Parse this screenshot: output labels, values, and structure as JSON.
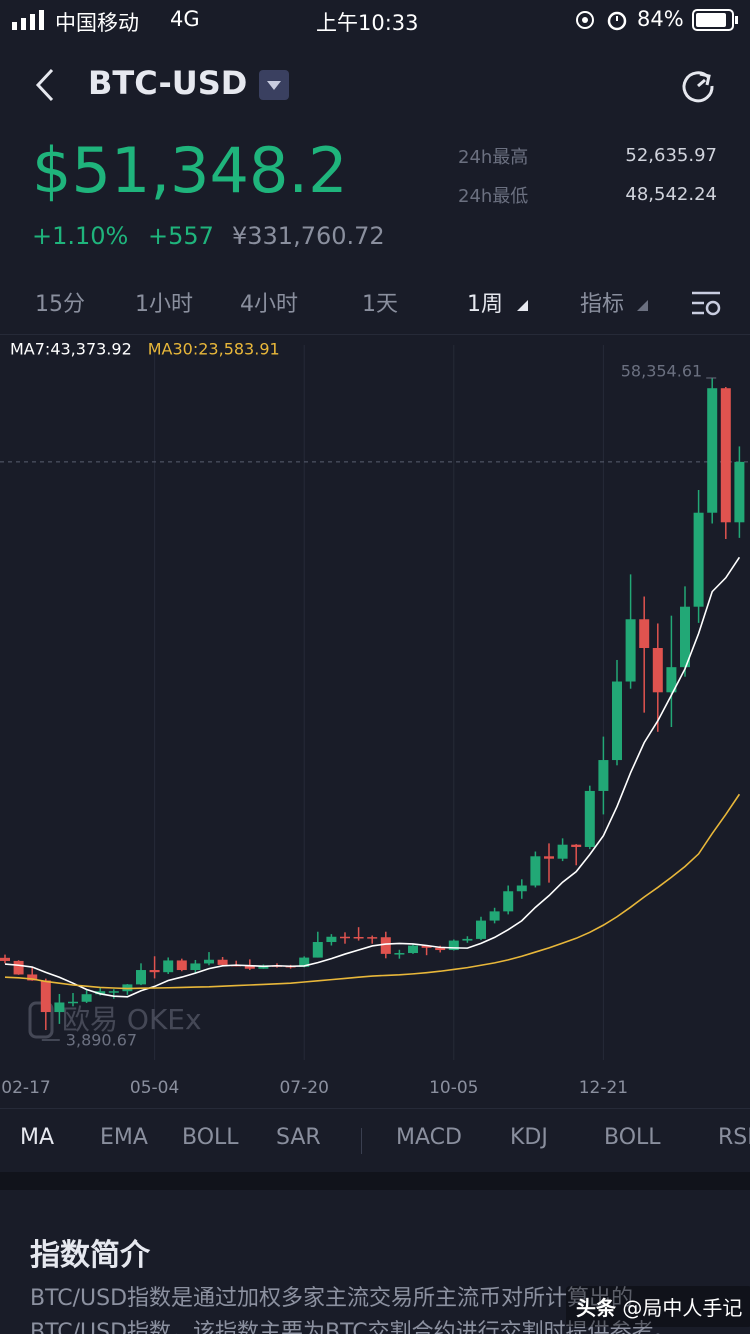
{
  "status_bar": {
    "carrier": "中国移动",
    "network": "4G",
    "time": "上午10:33",
    "battery": "84%"
  },
  "header": {
    "title": "BTC-USD"
  },
  "quote": {
    "price": "$51,348.2",
    "change_pct": "+1.10%",
    "change": "+557",
    "cny": "¥331,760.72",
    "high_label": "24h最高",
    "high": "52,635.97",
    "low_label": "24h最低",
    "low": "48,542.24"
  },
  "period_tabs": {
    "items": [
      "15分",
      "1小时",
      "4小时",
      "1天",
      "1周",
      "指标"
    ],
    "selected": "1周"
  },
  "chart_data": {
    "type": "candlestick",
    "categories": [
      "02-17",
      null,
      null,
      null,
      null,
      null,
      null,
      null,
      null,
      null,
      null,
      "05-04",
      null,
      null,
      null,
      null,
      null,
      null,
      null,
      null,
      null,
      null,
      "07-20",
      null,
      null,
      null,
      null,
      null,
      null,
      null,
      null,
      null,
      null,
      "10-05",
      null,
      null,
      null,
      null,
      null,
      null,
      null,
      null,
      null,
      null,
      "12-21",
      null,
      null,
      null,
      null,
      null,
      null,
      null,
      null,
      null,
      null
    ],
    "open": [
      9920,
      9660,
      8530,
      8030,
      5390,
      6190,
      6250,
      6880,
      7130,
      7130,
      7700,
      8900,
      8720,
      9700,
      8900,
      9450,
      9760,
      9330,
      9300,
      9010,
      9290,
      9240,
      9170,
      9940,
      11240,
      11680,
      11660,
      11650,
      11640,
      10250,
      10320,
      10940,
      10760,
      10570,
      11360,
      11500,
      13030,
      13800,
      15480,
      15960,
      18400,
      18200,
      19370,
      19180,
      23860,
      26440,
      33000,
      38200,
      35800,
      32100,
      34200,
      39250,
      47100,
      57500,
      46300
    ],
    "high": [
      10190,
      9720,
      9190,
      8180,
      6900,
      6980,
      7300,
      7470,
      7300,
      7730,
      9460,
      10050,
      9950,
      9850,
      9740,
      10400,
      9990,
      9680,
      9790,
      9360,
      9460,
      9330,
      10040,
      12100,
      11900,
      12050,
      12480,
      11780,
      12100,
      10590,
      11100,
      10990,
      10930,
      11450,
      11720,
      13350,
      14100,
      15960,
      16480,
      18800,
      19480,
      19900,
      19420,
      24300,
      28400,
      34800,
      41950,
      40100,
      37850,
      38500,
      40950,
      49000,
      58354.61,
      57600,
      52640
    ],
    "low": [
      9460,
      8500,
      8000,
      3890.67,
      4400,
      5870,
      6150,
      6780,
      6500,
      6830,
      7640,
      8200,
      8570,
      8800,
      8630,
      9300,
      9220,
      9200,
      8900,
      9000,
      9100,
      9020,
      9130,
      9940,
      10950,
      11100,
      11360,
      11100,
      9880,
      9850,
      10250,
      10140,
      10370,
      10530,
      11180,
      11400,
      12800,
      13550,
      14850,
      15800,
      16200,
      18000,
      17650,
      19000,
      21900,
      26000,
      32400,
      30400,
      28800,
      29200,
      33400,
      37900,
      46200,
      44900,
      45000
    ],
    "close": [
      9660,
      8530,
      8030,
      5390,
      6190,
      6250,
      6880,
      7130,
      7130,
      7700,
      8900,
      8720,
      9700,
      8900,
      9450,
      9760,
      9330,
      9300,
      9010,
      9290,
      9240,
      9170,
      9940,
      11240,
      11680,
      11660,
      11650,
      11640,
      10250,
      10320,
      10940,
      10760,
      10570,
      11360,
      11500,
      13030,
      13800,
      15480,
      15960,
      18400,
      18200,
      19370,
      19180,
      23860,
      26440,
      33000,
      38200,
      35800,
      32100,
      34200,
      39250,
      47100,
      57500,
      46300,
      51348.2
    ],
    "up_color": "#22a876",
    "down_color": "#e0534f",
    "lines": [
      {
        "name": "MA7",
        "label": "MA7:43,373.92",
        "color": "#ffffff",
        "values": [
          9400,
          9300,
          9150,
          8700,
          8300,
          7800,
          7276,
          6914,
          6714,
          6667,
          7169,
          7530,
          8023,
          8311,
          8643,
          9019,
          9251,
          9309,
          9267,
          9209,
          9257,
          9217,
          9243,
          9516,
          9856,
          10234,
          10571,
          10914,
          11069,
          11123,
          11080,
          10949,
          10793,
          10751,
          10731,
          11129,
          11626,
          12274,
          13017,
          14136,
          15113,
          16237,
          17116,
          18553,
          20119,
          22553,
          25381,
          27896,
          29714,
          31860,
          34059,
          37010,
          40510,
          41667,
          43373.92
        ]
      },
      {
        "name": "MA30",
        "label": "MA30:23,583.91",
        "color": "#e8b73a",
        "values": [
          8300,
          8250,
          8150,
          7950,
          7800,
          7650,
          7550,
          7450,
          7400,
          7350,
          7380,
          7400,
          7420,
          7450,
          7480,
          7500,
          7550,
          7600,
          7650,
          7700,
          7750,
          7800,
          7900,
          8000,
          8100,
          8200,
          8300,
          8400,
          8450,
          8500,
          8580,
          8680,
          8800,
          8950,
          9100,
          9300,
          9500,
          9750,
          10050,
          10400,
          10750,
          11150,
          11550,
          12050,
          12650,
          13350,
          14150,
          15000,
          15800,
          16650,
          17550,
          18600,
          20300,
          21900,
          23583.91
        ]
      }
    ],
    "annotations": [
      {
        "value": 58354.61,
        "label": "58,354.61"
      },
      {
        "value": 3890.67,
        "label": "3,890.67"
      }
    ],
    "last_price": 51348.2,
    "ylim": [
      1385,
      61110
    ],
    "grid": true,
    "watermark": "欧易 OKEx"
  },
  "indicator_tabs": {
    "main": [
      "MA",
      "EMA",
      "BOLL",
      "SAR"
    ],
    "sub": [
      "MACD",
      "KDJ",
      "BOLL",
      "RSI"
    ],
    "selected": "MA"
  },
  "intro": {
    "title": "指数简介",
    "text": "BTC/USD指数是通过加权多家主流交易所主流币对所计算出的BTC/USD指数，该指数主要为BTC交割合约进行交割时提供参考。"
  },
  "watermark": {
    "brand": "头条",
    "author": "@局中人手记"
  }
}
